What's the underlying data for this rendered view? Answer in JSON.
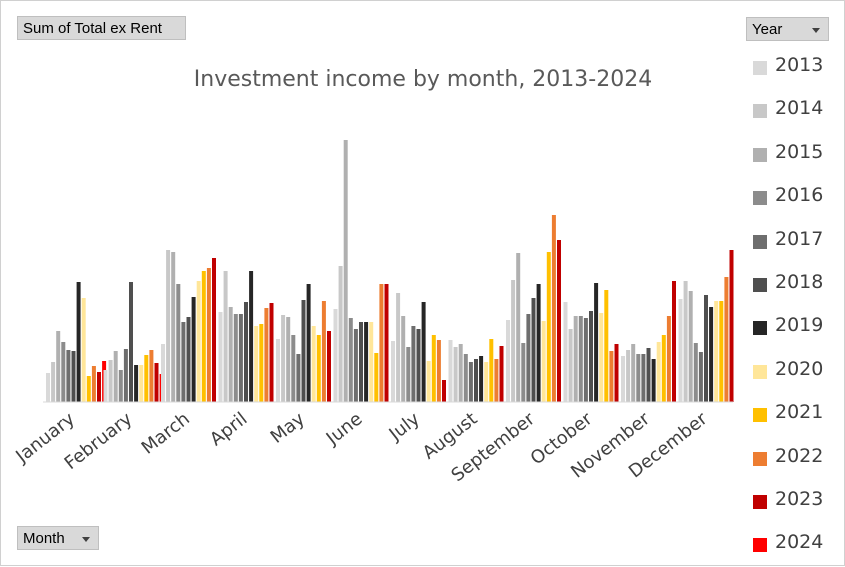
{
  "pivot": {
    "value_field": "Sum of Total ex Rent",
    "column_field": "Year",
    "row_field": "Month"
  },
  "chart_data": {
    "type": "bar",
    "title": "Investment income by month, 2013-2024",
    "categories": [
      "January",
      "February",
      "March",
      "April",
      "May",
      "June",
      "July",
      "August",
      "September",
      "October",
      "November",
      "December"
    ],
    "series": [
      {
        "name": "2013",
        "color": "#d9d9d9",
        "values": [
          29,
          32,
          58,
          90,
          63,
          93,
          61,
          62,
          82,
          100,
          46,
          103
        ]
      },
      {
        "name": "2014",
        "color": "#c8c8c8",
        "values": [
          40,
          42,
          152,
          131,
          87,
          136,
          109,
          55,
          122,
          73,
          52,
          121
        ]
      },
      {
        "name": "2015",
        "color": "#b0b0b0",
        "values": [
          71,
          51,
          150,
          95,
          85,
          262,
          86,
          58,
          149,
          86,
          58,
          111
        ]
      },
      {
        "name": "2016",
        "color": "#8c8c8c",
        "values": [
          60,
          32,
          118,
          88,
          67,
          84,
          55,
          48,
          59,
          86,
          48,
          59
        ]
      },
      {
        "name": "2017",
        "color": "#6e6e6e",
        "values": [
          52,
          53,
          80,
          88,
          48,
          73,
          76,
          40,
          88,
          84,
          48,
          50
        ]
      },
      {
        "name": "2018",
        "color": "#4f4f4f",
        "values": [
          51,
          120,
          85,
          100,
          102,
          80,
          73,
          43,
          104,
          91,
          54,
          107
        ]
      },
      {
        "name": "2019",
        "color": "#262626",
        "values": [
          120,
          37,
          105,
          131,
          118,
          80,
          100,
          46,
          118,
          119,
          43,
          95
        ]
      },
      {
        "name": "2020",
        "color": "#ffe699",
        "values": [
          104,
          37,
          121,
          76,
          76,
          80,
          41,
          40,
          81,
          89,
          60,
          101
        ]
      },
      {
        "name": "2021",
        "color": "#ffc000",
        "values": [
          26,
          47,
          131,
          78,
          67,
          49,
          67,
          63,
          150,
          112,
          67,
          101
        ]
      },
      {
        "name": "2022",
        "color": "#ed7d31",
        "values": [
          36,
          52,
          134,
          94,
          101,
          118,
          62,
          43,
          187,
          51,
          86,
          125
        ]
      },
      {
        "name": "2023",
        "color": "#c00000",
        "values": [
          30,
          39,
          144,
          99,
          71,
          118,
          22,
          56,
          162,
          58,
          121,
          152
        ]
      },
      {
        "name": "2024",
        "color": "#ff0000",
        "values": [
          41,
          28,
          null,
          null,
          null,
          null,
          null,
          null,
          null,
          null,
          null,
          null
        ]
      }
    ],
    "ylim": [
      0,
      262
    ],
    "grid": false,
    "y_axis_shown": false,
    "legend_position": "right"
  }
}
